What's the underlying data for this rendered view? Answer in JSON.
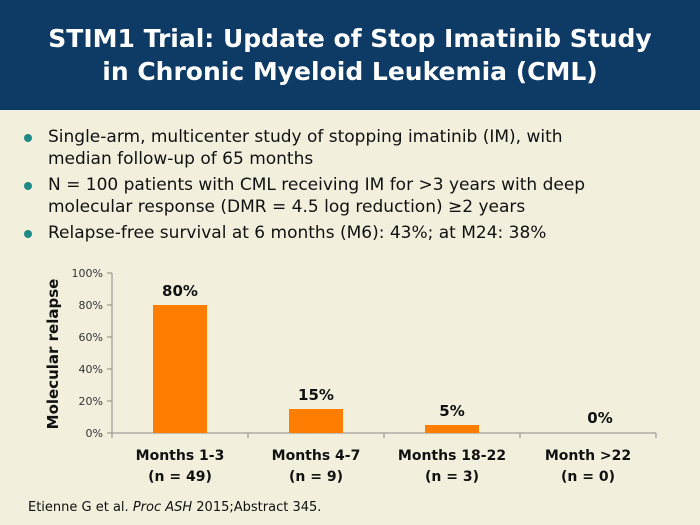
{
  "title": {
    "line1": "STIM1 Trial: Update of Stop Imatinib Study",
    "line2": "in Chronic Myeloid Leukemia (CML)"
  },
  "bullets": [
    {
      "line1": "Single-arm, multicenter study of stopping imatinib (IM), with",
      "line2": "median follow-up of 65 months"
    },
    {
      "line1": "N = 100 patients with CML receiving IM for >3 years with deep",
      "line2": "molecular response (DMR = 4.5 log reduction) ≥2 years"
    },
    {
      "line1": "Relapse-free survival at 6 months (M6): 43%; at M24: 38%",
      "line2": ""
    }
  ],
  "colors": {
    "header_bg": "#0e3a66",
    "background": "#f2efdc",
    "bullet": "#1f8a87",
    "bar": "#ff7d00"
  },
  "chart_data": {
    "type": "bar",
    "categories": [
      "Months 1-3",
      "Months 4-7",
      "Months 18-22",
      "Month >22"
    ],
    "category_sublabels": [
      "(n = 49)",
      "(n = 9)",
      "(n = 3)",
      "(n = 0)"
    ],
    "values": [
      80,
      15,
      5,
      0
    ],
    "data_labels": [
      "80%",
      "15%",
      "5%",
      "0%"
    ],
    "ylabel": "Molecular relapse",
    "ylim": [
      0,
      100
    ],
    "yticks": [
      "0%",
      "20%",
      "40%",
      "60%",
      "80%",
      "100%"
    ],
    "grid": false,
    "legend": false
  },
  "citation": {
    "prefix": "Etienne G et al. ",
    "journal": "Proc ASH",
    "suffix": " 2015;Abstract 345."
  }
}
